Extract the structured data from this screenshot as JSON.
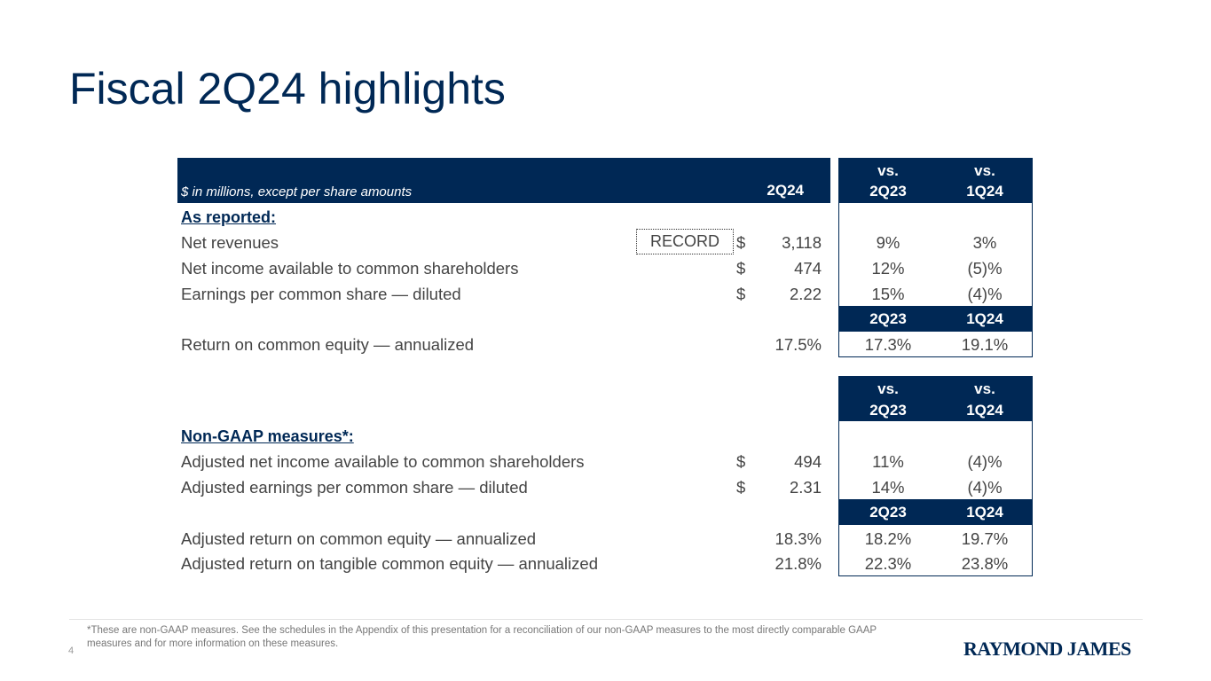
{
  "slide": {
    "title": "Fiscal 2Q24 highlights",
    "page_number": "4",
    "footnote": "*These are non-GAAP measures. See the schedules in the Appendix of this presentation for a reconciliation of our non-GAAP measures to the most directly comparable GAAP measures and for more information on these measures.",
    "logo_text": "RAYMOND JAMES",
    "colors": {
      "navy": "#002855",
      "text": "#444444"
    }
  },
  "table": {
    "header_note": "$ in millions, except per share amounts",
    "period": "2Q24",
    "vs_prefix": "vs.",
    "col_2q23": "2Q23",
    "col_1q24": "1Q24",
    "record_label": "RECORD",
    "currency": "$",
    "reported_title": "As reported:",
    "reported": [
      {
        "label": "Net revenues",
        "value": "3,118",
        "vs_2q23": "9%",
        "vs_1q24": "3%"
      },
      {
        "label": "Net income available to common shareholders",
        "value": "474",
        "vs_2q23": "12%",
        "vs_1q24": "(5)%"
      },
      {
        "label": "Earnings per common share — diluted",
        "value": "2.22",
        "vs_2q23": "15%",
        "vs_1q24": "(4)%"
      }
    ],
    "roe": {
      "label": "Return on common equity — annualized",
      "value": "17.5%",
      "v_2q23": "17.3%",
      "v_1q24": "19.1%"
    },
    "nongaap_title": "Non-GAAP measures*:",
    "nongaap": [
      {
        "label": "Adjusted net income available to common shareholders",
        "value": "494",
        "vs_2q23": "11%",
        "vs_1q24": "(4)%"
      },
      {
        "label": "Adjusted earnings per common share — diluted",
        "value": "2.31",
        "vs_2q23": "14%",
        "vs_1q24": "(4)%"
      }
    ],
    "adj_returns": [
      {
        "label": "Adjusted return on common equity — annualized",
        "value": "18.3%",
        "v_2q23": "18.2%",
        "v_1q24": "19.7%"
      },
      {
        "label": "Adjusted return on tangible common equity — annualized",
        "value": "21.8%",
        "v_2q23": "22.3%",
        "v_1q24": "23.8%"
      }
    ]
  }
}
